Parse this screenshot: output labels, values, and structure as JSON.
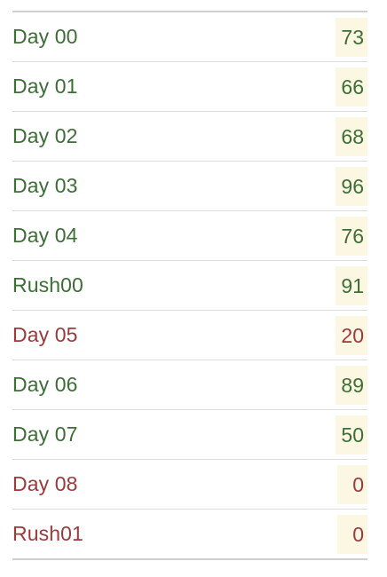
{
  "rows": [
    {
      "label": "Day 00",
      "score": "73",
      "status": "pass"
    },
    {
      "label": "Day 01",
      "score": "66",
      "status": "pass"
    },
    {
      "label": "Day 02",
      "score": "68",
      "status": "pass"
    },
    {
      "label": "Day 03",
      "score": "96",
      "status": "pass"
    },
    {
      "label": "Day 04",
      "score": "76",
      "status": "pass"
    },
    {
      "label": "Rush00",
      "score": "91",
      "status": "pass"
    },
    {
      "label": "Day 05",
      "score": "20",
      "status": "fail"
    },
    {
      "label": "Day 06",
      "score": "89",
      "status": "pass"
    },
    {
      "label": "Day 07",
      "score": "50",
      "status": "pass"
    },
    {
      "label": "Day 08",
      "score": "0",
      "status": "fail"
    },
    {
      "label": "Rush01",
      "score": "0",
      "status": "fail"
    }
  ],
  "colors": {
    "pass": "#3c6e36",
    "fail": "#9b3a3a",
    "score_background": "#fcf7e3"
  }
}
